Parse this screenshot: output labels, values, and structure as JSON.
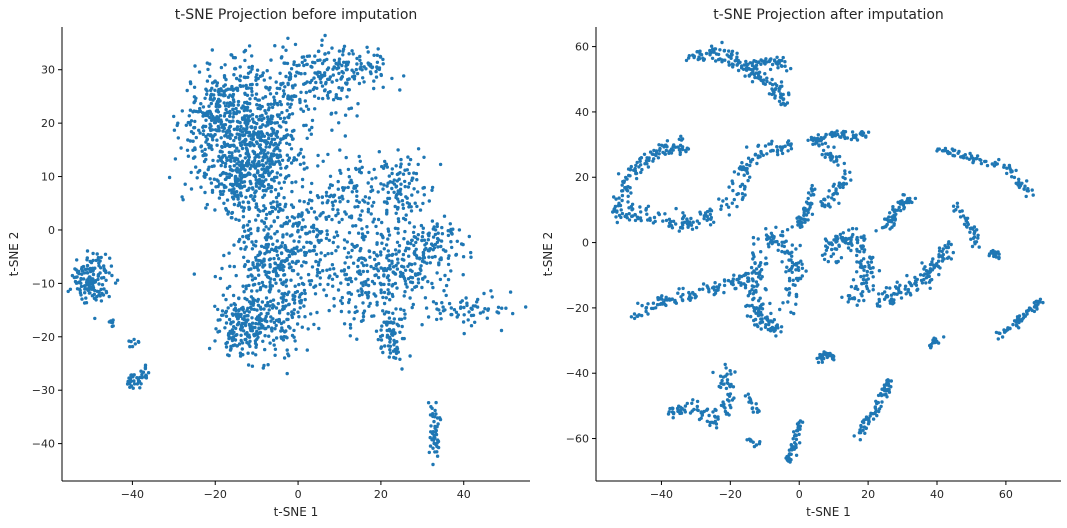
{
  "chart_data": [
    {
      "type": "scatter",
      "title": "t-SNE Projection before imputation",
      "xlabel": "t-SNE 1",
      "ylabel": "t-SNE 2",
      "xlim": [
        -57,
        56
      ],
      "ylim": [
        -47,
        38
      ],
      "xticks": [
        -40,
        -20,
        0,
        20,
        40
      ],
      "yticks": [
        -40,
        -30,
        -20,
        -10,
        0,
        10,
        20,
        30
      ],
      "xtick_labels": [
        "−40",
        "−20",
        "0",
        "20",
        "40"
      ],
      "ytick_labels": [
        "−40",
        "−30",
        "−20",
        "−10",
        "0",
        "10",
        "20",
        "30"
      ],
      "grid": false,
      "color": "#1f77b4",
      "clusters": [
        {
          "x": -18,
          "y": 20,
          "sx": 5,
          "sy": 5,
          "n": 420
        },
        {
          "x": -8,
          "y": 16,
          "sx": 4,
          "sy": 4,
          "n": 260
        },
        {
          "x": -13,
          "y": 9,
          "sx": 4,
          "sy": 3,
          "n": 200
        },
        {
          "x": -2,
          "y": 26,
          "sx": 8,
          "sy": 4,
          "n": 200
        },
        {
          "x": 10,
          "y": 30,
          "sx": 6,
          "sy": 2.5,
          "n": 120
        },
        {
          "x": 18,
          "y": 31,
          "sx": 2,
          "sy": 1,
          "n": 25
        },
        {
          "x": 0,
          "y": 0,
          "sx": 8,
          "sy": 7,
          "n": 300
        },
        {
          "x": 25,
          "y": 8,
          "sx": 3,
          "sy": 3,
          "n": 100
        },
        {
          "x": 14,
          "y": 6,
          "sx": 4,
          "sy": 4,
          "n": 80
        },
        {
          "x": 25,
          "y": -6,
          "sx": 6,
          "sy": 4,
          "n": 220
        },
        {
          "x": 33,
          "y": -2,
          "sx": 3,
          "sy": 2,
          "n": 60
        },
        {
          "x": 15,
          "y": -10,
          "sx": 5,
          "sy": 4,
          "n": 120
        },
        {
          "x": -13,
          "y": -18,
          "sx": 3,
          "sy": 3,
          "n": 200
        },
        {
          "x": -5,
          "y": -15,
          "sx": 4,
          "sy": 5,
          "n": 150
        },
        {
          "x": -7,
          "y": -5,
          "sx": 5,
          "sy": 6,
          "n": 150
        },
        {
          "x": 23,
          "y": -20,
          "sx": 1.5,
          "sy": 3,
          "n": 80
        },
        {
          "x": 42,
          "y": -15,
          "sx": 5,
          "sy": 1.5,
          "n": 60
        },
        {
          "x": 33,
          "y": -38,
          "sx": 0.7,
          "sy": 3,
          "n": 50
        },
        {
          "x": -50,
          "y": -9,
          "sx": 2.2,
          "sy": 2.2,
          "n": 150
        },
        {
          "x": -39,
          "y": -28,
          "sx": 2,
          "sy": 1,
          "n": 40
        },
        {
          "x": -40,
          "y": -21,
          "sx": 0.8,
          "sy": 0.3,
          "n": 8
        },
        {
          "x": -45,
          "y": -17,
          "sx": 0.5,
          "sy": 0.5,
          "n": 8
        }
      ]
    },
    {
      "type": "scatter",
      "title": "t-SNE Projection after imputation",
      "xlabel": "t-SNE 1",
      "ylabel": "t-SNE 2",
      "xlim": [
        -59,
        76
      ],
      "ylim": [
        -73,
        66
      ],
      "xticks": [
        -40,
        -20,
        0,
        20,
        40,
        60
      ],
      "yticks": [
        -60,
        -40,
        -20,
        0,
        20,
        40,
        60
      ],
      "xtick_labels": [
        "−40",
        "−20",
        "0",
        "20",
        "40",
        "60"
      ],
      "ytick_labels": [
        "−60",
        "−40",
        "−20",
        "0",
        "20",
        "40",
        "60"
      ],
      "grid": false,
      "color": "#1f77b4",
      "strands": [
        {
          "path": [
            [
              -32,
              57
            ],
            [
              -25,
              58
            ],
            [
              -20,
              57
            ],
            [
              -14,
              53
            ],
            [
              -8,
              48
            ],
            [
              -3,
              42
            ]
          ],
          "n": 150,
          "w": 2
        },
        {
          "path": [
            [
              -13,
              55
            ],
            [
              -8,
              55
            ],
            [
              -3,
              54
            ]
          ],
          "n": 40,
          "w": 1.5
        },
        {
          "path": [
            [
              -53,
              8
            ],
            [
              -50,
              20
            ],
            [
              -45,
              25
            ],
            [
              -40,
              28
            ],
            [
              -35,
              30
            ],
            [
              -32,
              28
            ]
          ],
          "n": 120,
          "w": 2
        },
        {
          "path": [
            [
              -52,
              9
            ],
            [
              -42,
              8
            ],
            [
              -30,
              6
            ],
            [
              -22,
              10
            ],
            [
              -18,
              15
            ],
            [
              -16,
              23
            ],
            [
              -10,
              28
            ],
            [
              -2,
              30
            ]
          ],
          "n": 180,
          "w": 2.5
        },
        {
          "path": [
            [
              2,
              32
            ],
            [
              10,
              33
            ],
            [
              20,
              33
            ]
          ],
          "n": 60,
          "w": 1.2
        },
        {
          "path": [
            [
              5,
              32
            ],
            [
              8,
              28
            ],
            [
              12,
              24
            ]
          ],
          "n": 30,
          "w": 1.5
        },
        {
          "path": [
            [
              40,
              29
            ],
            [
              48,
              26
            ],
            [
              58,
              24
            ],
            [
              63,
              20
            ],
            [
              67,
              15
            ]
          ],
          "n": 80,
          "w": 1.2
        },
        {
          "path": [
            [
              -48,
              -22
            ],
            [
              -40,
              -18
            ],
            [
              -30,
              -16
            ],
            [
              -22,
              -13
            ],
            [
              -15,
              -11
            ]
          ],
          "n": 110,
          "w": 2
        },
        {
          "path": [
            [
              -13,
              -3
            ],
            [
              -12,
              -10
            ],
            [
              -14,
              -18
            ],
            [
              -10,
              -25
            ],
            [
              -6,
              -26
            ]
          ],
          "n": 120,
          "w": 2.5
        },
        {
          "path": [
            [
              -12,
              0
            ],
            [
              -7,
              2
            ],
            [
              -3,
              -2
            ],
            [
              -1,
              -10
            ],
            [
              -2,
              -20
            ]
          ],
          "n": 100,
          "w": 2.5
        },
        {
          "path": [
            [
              0,
              5
            ],
            [
              3,
              12
            ],
            [
              4,
              17
            ]
          ],
          "n": 50,
          "w": 1.5
        },
        {
          "path": [
            [
              7,
              10
            ],
            [
              12,
              18
            ],
            [
              15,
              19
            ]
          ],
          "n": 40,
          "w": 1.5
        },
        {
          "path": [
            [
              8,
              -5
            ],
            [
              14,
              2
            ],
            [
              18,
              0
            ],
            [
              20,
              -10
            ],
            [
              15,
              -18
            ]
          ],
          "n": 140,
          "w": 3
        },
        {
          "path": [
            [
              25,
              5
            ],
            [
              30,
              12
            ],
            [
              33,
              14
            ]
          ],
          "n": 60,
          "w": 1.8
        },
        {
          "path": [
            [
              22,
              -20
            ],
            [
              28,
              -15
            ],
            [
              35,
              -12
            ],
            [
              40,
              -7
            ],
            [
              43,
              0
            ]
          ],
          "n": 120,
          "w": 2
        },
        {
          "path": [
            [
              45,
              12
            ],
            [
              50,
              5
            ],
            [
              52,
              -2
            ]
          ],
          "n": 40,
          "w": 1.2
        },
        {
          "path": [
            [
              55,
              -1
            ],
            [
              58,
              -5
            ]
          ],
          "n": 20,
          "w": 1
        },
        {
          "path": [
            [
              58,
              -28
            ],
            [
              63,
              -25
            ],
            [
              68,
              -20
            ],
            [
              70,
              -17
            ]
          ],
          "n": 60,
          "w": 1
        },
        {
          "path": [
            [
              38,
              -32
            ],
            [
              41,
              -29
            ]
          ],
          "n": 15,
          "w": 1
        },
        {
          "path": [
            [
              5,
              -36
            ],
            [
              8,
              -34
            ],
            [
              10,
              -36
            ]
          ],
          "n": 30,
          "w": 1
        },
        {
          "path": [
            [
              -38,
              -52
            ],
            [
              -30,
              -50
            ],
            [
              -25,
              -55
            ],
            [
              -20,
              -50
            ],
            [
              -22,
              -42
            ],
            [
              -20,
              -38
            ]
          ],
          "n": 100,
          "w": 2
        },
        {
          "path": [
            [
              -15,
              -47
            ],
            [
              -12,
              -52
            ]
          ],
          "n": 15,
          "w": 1
        },
        {
          "path": [
            [
              -15,
              -60
            ],
            [
              -12,
              -62
            ]
          ],
          "n": 10,
          "w": 1
        },
        {
          "path": [
            [
              0,
              -55
            ],
            [
              -1,
              -62
            ],
            [
              -4,
              -67
            ]
          ],
          "n": 45,
          "w": 1
        },
        {
          "path": [
            [
              17,
              -59
            ],
            [
              20,
              -55
            ],
            [
              24,
              -48
            ],
            [
              26,
              -43
            ]
          ],
          "n": 70,
          "w": 1.3
        }
      ]
    }
  ]
}
